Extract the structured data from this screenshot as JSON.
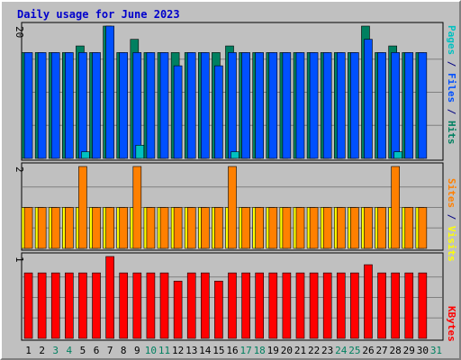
{
  "chart_data": {
    "type": "bar",
    "title": "Daily usage for June 2023",
    "days": [
      "1",
      "2",
      "3",
      "4",
      "5",
      "6",
      "7",
      "8",
      "9",
      "10",
      "11",
      "12",
      "13",
      "14",
      "15",
      "16",
      "17",
      "18",
      "19",
      "20",
      "21",
      "22",
      "23",
      "24",
      "25",
      "26",
      "27",
      "28",
      "29",
      "30",
      "31"
    ],
    "weekend_days": [
      "3",
      "4",
      "10",
      "11",
      "17",
      "18",
      "24",
      "25",
      "31"
    ],
    "panels": [
      {
        "name": "top",
        "ymax": 20,
        "ymax_label": "20",
        "legend": [
          {
            "text": "Pages",
            "color": "#00c0c0"
          },
          {
            "text": " / ",
            "color": "#000080"
          },
          {
            "text": "Files",
            "color": "#0050ff"
          },
          {
            "text": " / ",
            "color": "#000080"
          },
          {
            "text": "Hits",
            "color": "#008060"
          }
        ],
        "series": [
          {
            "name": "Hits",
            "color": "#008060",
            "values": [
              16,
              16,
              16,
              16,
              17,
              16,
              20,
              16,
              18,
              16,
              16,
              16,
              16,
              16,
              16,
              17,
              16,
              16,
              16,
              16,
              16,
              16,
              16,
              16,
              16,
              20,
              16,
              17,
              16,
              16,
              null
            ]
          },
          {
            "name": "Files",
            "color": "#0050ff",
            "values": [
              16,
              16,
              16,
              16,
              16,
              16,
              20,
              16,
              16,
              16,
              16,
              14,
              16,
              16,
              14,
              16,
              16,
              16,
              16,
              16,
              16,
              16,
              16,
              16,
              16,
              18,
              16,
              16,
              16,
              16,
              null
            ]
          },
          {
            "name": "Pages",
            "color": "#00c0c0",
            "values": [
              0,
              0,
              0,
              0,
              1,
              0,
              0,
              0,
              2,
              0,
              0,
              0,
              0,
              0,
              0,
              1,
              0,
              0,
              0,
              0,
              0,
              0,
              0,
              0,
              0,
              0,
              0,
              1,
              0,
              0,
              null
            ]
          }
        ]
      },
      {
        "name": "middle",
        "ymax": 2,
        "ymax_label": "2",
        "legend": [
          {
            "text": "Sites",
            "color": "#ff8000"
          },
          {
            "text": " / ",
            "color": "#000080"
          },
          {
            "text": "Visits",
            "color": "#ffff00"
          }
        ],
        "series": [
          {
            "name": "Visits",
            "color": "#ffff00",
            "values": [
              1,
              1,
              1,
              1,
              1,
              1,
              1,
              1,
              1,
              1,
              1,
              1,
              1,
              1,
              1,
              1,
              1,
              1,
              1,
              1,
              1,
              1,
              1,
              1,
              1,
              1,
              1,
              1,
              1,
              1,
              null
            ]
          },
          {
            "name": "Sites",
            "color": "#ff8000",
            "values": [
              1,
              1,
              1,
              1,
              2,
              1,
              1,
              1,
              2,
              1,
              1,
              1,
              1,
              1,
              1,
              2,
              1,
              1,
              1,
              1,
              1,
              1,
              1,
              1,
              1,
              1,
              1,
              2,
              1,
              1,
              null
            ]
          }
        ]
      },
      {
        "name": "bottom",
        "ymax": 1,
        "ymax_label": "1",
        "legend": [
          {
            "text": "KBytes",
            "color": "#ff0000"
          }
        ],
        "series": [
          {
            "name": "KBytes",
            "color": "#ff0000",
            "values": [
              0.8,
              0.8,
              0.8,
              0.8,
              0.8,
              0.8,
              1.0,
              0.8,
              0.8,
              0.8,
              0.8,
              0.7,
              0.8,
              0.8,
              0.7,
              0.8,
              0.8,
              0.8,
              0.8,
              0.8,
              0.8,
              0.8,
              0.8,
              0.8,
              0.8,
              0.9,
              0.8,
              0.8,
              0.8,
              0.8,
              null
            ]
          }
        ]
      }
    ]
  },
  "colors": {
    "background": "#c0c0c0",
    "panel_border": "#000000",
    "grid_line": "#808080",
    "weekday_label": "#000000",
    "weekend_label": "#008060"
  }
}
